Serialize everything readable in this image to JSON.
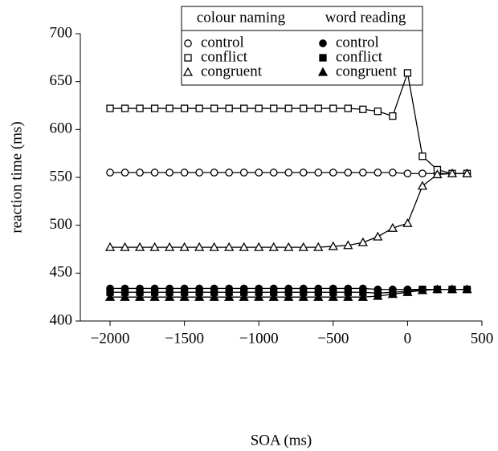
{
  "chart_data": {
    "type": "line",
    "x_label": "SOA (ms)",
    "y_label": "reaction time (ms)",
    "legend_titles": [
      "colour naming",
      "word reading"
    ],
    "x": [
      -2000,
      -1900,
      -1800,
      -1700,
      -1600,
      -1500,
      -1400,
      -1300,
      -1200,
      -1100,
      -1000,
      -900,
      -800,
      -700,
      -600,
      -500,
      -400,
      -300,
      -200,
      -100,
      0,
      100,
      200,
      300,
      400
    ],
    "series": [
      {
        "name": "control",
        "color": "#000000",
        "marker": "circle",
        "filled": false,
        "legend_column": 0,
        "values": [
          555,
          555,
          555,
          555,
          555,
          555,
          555,
          555,
          555,
          555,
          555,
          555,
          555,
          555,
          555,
          555,
          555,
          555,
          555,
          555,
          554,
          554,
          554,
          554,
          554
        ]
      },
      {
        "name": "conflict",
        "color": "#000000",
        "marker": "square",
        "filled": false,
        "legend_column": 0,
        "values": [
          622,
          622,
          622,
          622,
          622,
          622,
          622,
          622,
          622,
          622,
          622,
          622,
          622,
          622,
          622,
          622,
          622,
          621,
          619,
          614,
          659,
          572,
          558,
          554,
          554
        ]
      },
      {
        "name": "congruent",
        "color": "#000000",
        "marker": "triangle",
        "filled": false,
        "legend_column": 0,
        "values": [
          477,
          477,
          477,
          477,
          477,
          477,
          477,
          477,
          477,
          477,
          477,
          477,
          477,
          477,
          477,
          478,
          479,
          482,
          488,
          497,
          502,
          541,
          553,
          554,
          554
        ]
      },
      {
        "name": "control",
        "color": "#000000",
        "marker": "circle",
        "filled": true,
        "legend_column": 1,
        "values": [
          434,
          434,
          434,
          434,
          434,
          434,
          434,
          434,
          434,
          434,
          434,
          434,
          434,
          434,
          434,
          434,
          434,
          434,
          433,
          433,
          433,
          433,
          433,
          433,
          433
        ]
      },
      {
        "name": "conflict",
        "color": "#000000",
        "marker": "square",
        "filled": true,
        "legend_column": 1,
        "values": [
          430,
          430,
          430,
          430,
          430,
          430,
          430,
          430,
          430,
          430,
          430,
          430,
          430,
          430,
          430,
          430,
          430,
          430,
          429,
          430,
          431,
          433,
          433,
          433,
          433
        ]
      },
      {
        "name": "congruent",
        "color": "#000000",
        "marker": "triangle",
        "filled": true,
        "legend_column": 1,
        "values": [
          425,
          425,
          425,
          425,
          425,
          425,
          425,
          425,
          425,
          425,
          425,
          425,
          425,
          425,
          425,
          425,
          425,
          425,
          426,
          428,
          430,
          432,
          433,
          433,
          433
        ]
      }
    ],
    "xlim": [
      -2200,
      500
    ],
    "xticks": [
      -2000,
      -1500,
      -1000,
      -500,
      0,
      500
    ],
    "ylim": [
      400,
      700
    ],
    "yticks": [
      400,
      450,
      500,
      550,
      600,
      650,
      700
    ],
    "grid": false
  }
}
